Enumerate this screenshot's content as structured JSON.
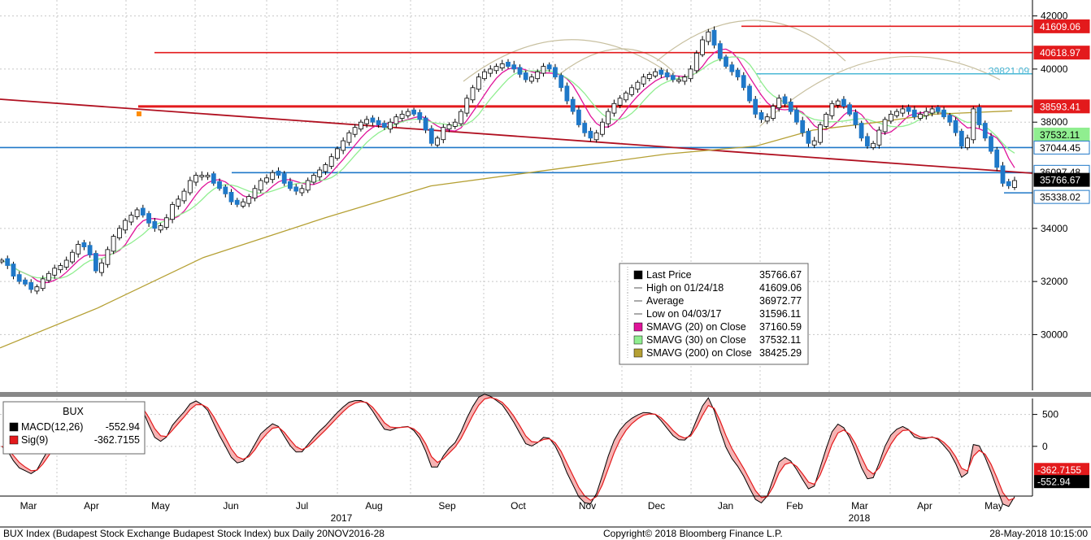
{
  "chart_data": {
    "type": "line",
    "y_axis": {
      "ticks": [
        "42000",
        "40000",
        "38000",
        "34000",
        "32000",
        "30000"
      ],
      "values": [
        42000,
        40000,
        38000,
        34000,
        32000,
        30000
      ],
      "range": [
        27900,
        42600
      ]
    },
    "x_axis": {
      "months": [
        "Mar",
        "Apr",
        "May",
        "Jun",
        "Jul",
        "Aug",
        "Sep",
        "Oct",
        "Nov",
        "Dec",
        "Jan",
        "Feb",
        "Mar",
        "Apr",
        "May"
      ],
      "years": [
        "2017",
        "2018"
      ]
    },
    "price_candles": {
      "start_value": 32800,
      "points": [
        32800,
        32600,
        32200,
        32000,
        31900,
        31700,
        31800,
        32100,
        32300,
        32500,
        32600,
        32800,
        33100,
        33400,
        33300,
        33000,
        32400,
        32700,
        33200,
        33700,
        34000,
        34300,
        34500,
        34700,
        34500,
        34200,
        34000,
        34100,
        34400,
        34900,
        35100,
        35400,
        35800,
        36000,
        36000,
        36000,
        35700,
        35500,
        35300,
        35000,
        34900,
        35000,
        35200,
        35500,
        35800,
        35900,
        36100,
        36000,
        35700,
        35500,
        35400,
        35500,
        35800,
        36000,
        36200,
        36400,
        36700,
        37000,
        37300,
        37600,
        37800,
        38000,
        38100,
        38000,
        37900,
        37800,
        38000,
        38200,
        38300,
        38400,
        38300,
        38100,
        37700,
        37200,
        37400,
        37800,
        37900,
        38000,
        38400,
        38900,
        39300,
        39700,
        39900,
        40000,
        40100,
        40200,
        40100,
        40000,
        39800,
        39600,
        39700,
        39900,
        40100,
        40000,
        39700,
        39300,
        38800,
        38400,
        37900,
        37600,
        37400,
        37600,
        38000,
        38400,
        38700,
        38900,
        39100,
        39300,
        39500,
        39700,
        39800,
        39900,
        39800,
        39700,
        39600,
        39600,
        39700,
        40000,
        40600,
        41100,
        41400,
        40900,
        40400,
        40100,
        39900,
        39700,
        39300,
        38800,
        38300,
        38100,
        38200,
        38600,
        38900,
        38700,
        38400,
        38000,
        37600,
        37200,
        37300,
        37900,
        38300,
        38700,
        38800,
        38600,
        38300,
        37900,
        37400,
        37100,
        37200,
        37700,
        38100,
        38300,
        38400,
        38500,
        38400,
        38200,
        38300,
        38400,
        38500,
        38400,
        38200,
        38000,
        37600,
        37100,
        37400,
        38500,
        37900,
        37400,
        36900,
        36300,
        35700,
        35600,
        35800
      ]
    },
    "series": [
      {
        "name": "SMAVG (20) on Close",
        "color": "#e0149a",
        "smooth": 20
      },
      {
        "name": "SMAVG (30) on Close",
        "color": "#90ee90",
        "smooth": 30
      },
      {
        "name": "SMAVG (200) on Close",
        "color": "#b5a034",
        "points": [
          [
            0,
            29500
          ],
          [
            120,
            31000
          ],
          [
            250,
            32900
          ],
          [
            400,
            34400
          ],
          [
            530,
            35600
          ],
          [
            700,
            36300
          ],
          [
            820,
            36800
          ],
          [
            930,
            37100
          ],
          [
            1000,
            37700
          ],
          [
            1080,
            38000
          ],
          [
            1150,
            38300
          ],
          [
            1245,
            38425
          ]
        ]
      }
    ],
    "horizontal_levels": [
      {
        "value": 41609.06,
        "label": "41609.06",
        "color": "#e31a1c",
        "tag_bg": "#e31a1c",
        "tag_fg": "#ffffff"
      },
      {
        "value": 40618.97,
        "label": "40618.97",
        "color": "#e31a1c",
        "tag_bg": "#e31a1c",
        "tag_fg": "#ffffff"
      },
      {
        "value": 39821.09,
        "label": "39821.09",
        "color": "#4bb8d6",
        "tag_bg": "none",
        "tag_fg": "#4bb8d6"
      },
      {
        "value": 38593.41,
        "label": "38593.41",
        "color": "#e31a1c",
        "tag_bg": "#e31a1c",
        "tag_fg": "#ffffff"
      },
      {
        "value": 37532.11,
        "label": "37532.11",
        "color": "#90ee90",
        "tag_bg": "#90ee90",
        "tag_fg": "#000000"
      },
      {
        "value": 37044.45,
        "label": "37044.45",
        "color": "#1f78c8",
        "tag_bg": "#ffffff",
        "tag_fg": "#000000"
      },
      {
        "value": 36097.48,
        "label": "36097.48",
        "color": "#1f78c8",
        "tag_bg": "#ffffff",
        "tag_fg": "#000000"
      },
      {
        "value": 35766.67,
        "label": "35766.67",
        "color": "#000000",
        "tag_bg": "#000000",
        "tag_fg": "#ffffff"
      },
      {
        "value": 35338.02,
        "label": "35338.02",
        "color": "#1f78c8",
        "tag_bg": "#ffffff",
        "tag_fg": "#000000"
      }
    ],
    "legend": {
      "entries": [
        {
          "label": "Last Price",
          "value": "35766.67",
          "color": "#000000"
        },
        {
          "label": "High on 01/24/18",
          "value": "41609.06",
          "color": "none"
        },
        {
          "label": "Average",
          "value": "36972.77",
          "color": "none"
        },
        {
          "label": "Low on 04/03/17",
          "value": "31596.11",
          "color": "none"
        },
        {
          "label": "SMAVG (20) on Close",
          "value": "37160.59",
          "color": "#e0149a"
        },
        {
          "label": "SMAVG (30) on Close",
          "value": "37532.11",
          "color": "#90ee90"
        },
        {
          "label": "SMAVG (200) on Close",
          "value": "38425.29",
          "color": "#b5a034"
        }
      ]
    },
    "macd": {
      "title": "BUX",
      "entries": [
        {
          "label": "MACD(12,26)",
          "value": "-552.94",
          "color": "#000000"
        },
        {
          "label": "Sig(9)",
          "value": "-362.7155",
          "color": "#e31a1c"
        }
      ],
      "ticks": [
        "500",
        "0"
      ],
      "tick_values": [
        500,
        0
      ],
      "range": [
        -780,
        750
      ],
      "tags": [
        {
          "label": "-362.7155",
          "value": -362.7155,
          "bg": "#e31a1c",
          "fg": "#ffffff"
        },
        {
          "label": "-552.94",
          "value": -552.94,
          "bg": "#000000",
          "fg": "#ffffff"
        }
      ]
    },
    "footer": {
      "left": "BUX Index (Budapest Stock Exchange Budapest Stock Index) bux  Daily 20NOV2016-28",
      "center": "Copyright© 2018 Bloomberg Finance L.P.",
      "right": "28-May-2018 10:15:00"
    }
  }
}
